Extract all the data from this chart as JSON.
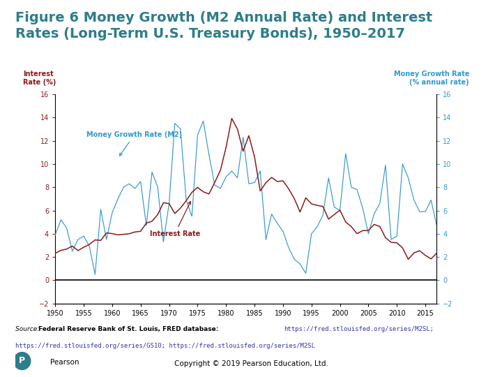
{
  "title_line1": "Figure 6 Money Growth (M2 Annual Rate) and Interest",
  "title_line2": "Rates (Long-Term U.S. Treasury Bonds), 1950–2017",
  "title_color": "#2e7d8a",
  "left_ylabel_line1": "Interest",
  "left_ylabel_line2": "Rate (%)",
  "right_ylabel_line1": "Money Growth Rate",
  "right_ylabel_line2": "(% annual rate)",
  "left_ylabel_color": "#8b1a1a",
  "right_ylabel_color": "#3399cc",
  "xlim": [
    1950,
    2017
  ],
  "ylim": [
    -2,
    16
  ],
  "yticks": [
    -2,
    0,
    2,
    4,
    6,
    8,
    10,
    12,
    14,
    16
  ],
  "xticks": [
    1950,
    1955,
    1960,
    1965,
    1970,
    1975,
    1980,
    1985,
    1990,
    1995,
    2000,
    2005,
    2010,
    2015
  ],
  "interest_rate_color": "#8b1a1a",
  "m2_color": "#3399cc",
  "copyright_text": "Copyright © 2019 Pearson Education, Ltd.",
  "interest_rate_label": "Interest Rate",
  "m2_label": "Money Growth Rate (M2)",
  "years_ir": [
    1950,
    1951,
    1952,
    1953,
    1954,
    1955,
    1956,
    1957,
    1958,
    1959,
    1960,
    1961,
    1962,
    1963,
    1964,
    1965,
    1966,
    1967,
    1968,
    1969,
    1970,
    1971,
    1972,
    1973,
    1974,
    1975,
    1976,
    1977,
    1978,
    1979,
    1980,
    1981,
    1982,
    1983,
    1984,
    1985,
    1986,
    1987,
    1988,
    1989,
    1990,
    1991,
    1992,
    1993,
    1994,
    1995,
    1996,
    1997,
    1998,
    1999,
    2000,
    2001,
    2002,
    2003,
    2004,
    2005,
    2006,
    2007,
    2008,
    2009,
    2010,
    2011,
    2012,
    2013,
    2014,
    2015,
    2016,
    2017
  ],
  "interest_rate": [
    2.32,
    2.57,
    2.68,
    2.94,
    2.55,
    2.84,
    3.08,
    3.47,
    3.43,
    4.07,
    4.01,
    3.9,
    3.95,
    4.0,
    4.15,
    4.21,
    4.92,
    5.07,
    5.65,
    6.67,
    6.59,
    5.74,
    6.21,
    6.84,
    7.56,
    7.99,
    7.61,
    7.42,
    8.41,
    9.44,
    11.43,
    13.92,
    13.0,
    11.1,
    12.44,
    10.62,
    7.68,
    8.39,
    8.85,
    8.49,
    8.55,
    7.86,
    7.01,
    5.87,
    7.09,
    6.57,
    6.44,
    6.35,
    5.26,
    5.65,
    6.03,
    5.02,
    4.61,
    4.01,
    4.27,
    4.29,
    4.8,
    4.63,
    3.66,
    3.26,
    3.22,
    2.78,
    1.8,
    2.35,
    2.54,
    2.14,
    1.84,
    2.33
  ],
  "years_m2": [
    1950,
    1951,
    1952,
    1953,
    1954,
    1955,
    1956,
    1957,
    1958,
    1959,
    1960,
    1961,
    1962,
    1963,
    1964,
    1965,
    1966,
    1967,
    1968,
    1969,
    1970,
    1971,
    1972,
    1973,
    1974,
    1975,
    1976,
    1977,
    1978,
    1979,
    1980,
    1981,
    1982,
    1983,
    1984,
    1985,
    1986,
    1987,
    1988,
    1989,
    1990,
    1991,
    1992,
    1993,
    1994,
    1995,
    1996,
    1997,
    1998,
    1999,
    2000,
    2001,
    2002,
    2003,
    2004,
    2005,
    2006,
    2007,
    2008,
    2009,
    2010,
    2011,
    2012,
    2013,
    2014,
    2015,
    2016,
    2017
  ],
  "m2_growth": [
    3.9,
    5.2,
    4.5,
    2.5,
    3.5,
    3.8,
    2.9,
    0.5,
    6.1,
    3.5,
    5.8,
    7.0,
    8.0,
    8.3,
    7.9,
    8.5,
    4.7,
    9.3,
    8.0,
    3.3,
    6.6,
    13.5,
    13.0,
    6.9,
    5.5,
    12.5,
    13.7,
    10.8,
    8.2,
    7.9,
    8.9,
    9.4,
    8.8,
    12.3,
    8.3,
    8.4,
    9.4,
    3.5,
    5.7,
    4.9,
    4.2,
    2.8,
    1.8,
    1.4,
    0.6,
    4.0,
    4.6,
    5.6,
    8.8,
    6.3,
    6.0,
    10.9,
    8.0,
    7.8,
    6.2,
    4.0,
    5.7,
    6.6,
    9.9,
    3.5,
    3.8,
    10.0,
    8.8,
    6.9,
    5.9,
    5.9,
    6.9,
    4.7
  ]
}
